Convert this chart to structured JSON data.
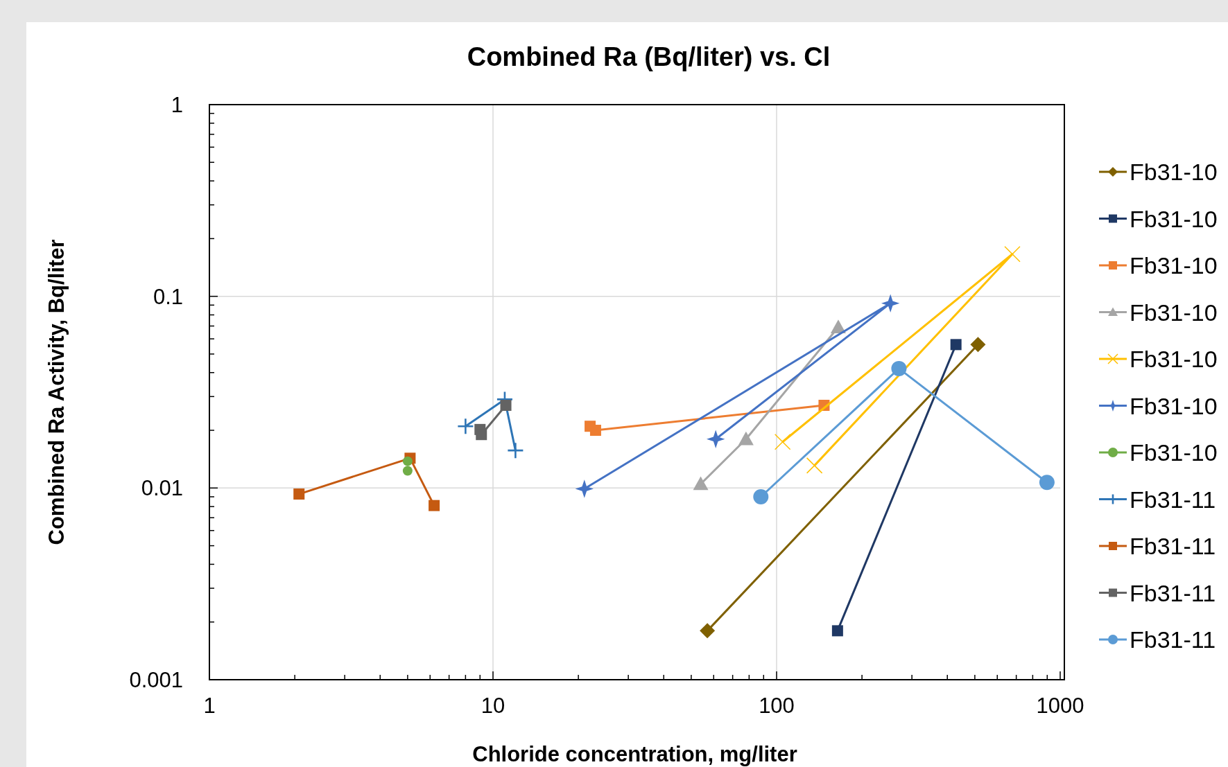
{
  "chart_data": {
    "type": "line",
    "title": "Combined Ra (Bq/liter) vs. Cl",
    "xlabel": "Chloride concentration, mg/liter",
    "ylabel": "Combined Ra Activity, Bq/liter",
    "log": "xy",
    "grid": true,
    "legend": "right",
    "xlim": [
      1,
      1000
    ],
    "ylim": [
      0.001,
      1
    ],
    "xticks": [
      1,
      {
        "value": 2,
        "label": null
      },
      {
        "value": 3,
        "label": null
      },
      {
        "value": 4,
        "label": null
      },
      {
        "value": 5,
        "label": null
      },
      {
        "value": 6,
        "label": null
      },
      {
        "value": 7,
        "label": null
      },
      {
        "value": 8,
        "label": null
      },
      {
        "value": 9,
        "label": null
      },
      10,
      {
        "value": 20,
        "label": null
      },
      {
        "value": 30,
        "label": null
      },
      {
        "value": 40,
        "label": null
      },
      {
        "value": 50,
        "label": null
      },
      {
        "value": 60,
        "label": null
      },
      {
        "value": 70,
        "label": null
      },
      {
        "value": 80,
        "label": null
      },
      {
        "value": 90,
        "label": null
      },
      100,
      {
        "value": 200,
        "label": null
      },
      {
        "value": 300,
        "label": null
      },
      {
        "value": 400,
        "label": null
      },
      {
        "value": 500,
        "label": null
      },
      {
        "value": 600,
        "label": null
      },
      {
        "value": 700,
        "label": null
      },
      {
        "value": 800,
        "label": null
      },
      {
        "value": 900,
        "label": null
      },
      1000
    ],
    "yticks": [
      0.001,
      {
        "value": 0.002,
        "label": null
      },
      {
        "value": 0.003,
        "label": null
      },
      {
        "value": 0.004,
        "label": null
      },
      {
        "value": 0.005,
        "label": null
      },
      {
        "value": 0.006,
        "label": null
      },
      {
        "value": 0.007,
        "label": null
      },
      {
        "value": 0.008,
        "label": null
      },
      {
        "value": 0.009,
        "label": null
      },
      0.01,
      {
        "value": 0.02,
        "label": null
      },
      {
        "value": 0.03,
        "label": null
      },
      {
        "value": 0.04,
        "label": null
      },
      {
        "value": 0.05,
        "label": null
      },
      {
        "value": 0.06,
        "label": null
      },
      {
        "value": 0.07,
        "label": null
      },
      {
        "value": 0.08,
        "label": null
      },
      {
        "value": 0.09,
        "label": null
      },
      0.1,
      {
        "value": 0.2,
        "label": null
      },
      {
        "value": 0.3,
        "label": null
      },
      {
        "value": 0.4,
        "label": null
      },
      {
        "value": 0.5,
        "label": null
      },
      {
        "value": 0.6,
        "label": null
      },
      {
        "value": 0.7,
        "label": null
      },
      {
        "value": 0.8,
        "label": null
      },
      {
        "value": 0.9,
        "label": null
      },
      1
    ],
    "series": [
      {
        "name": "Fb31-10",
        "color": "#7f6000",
        "marker": "diamond",
        "x": [
          57,
          513
        ],
        "values": [
          0.0018,
          0.056
        ]
      },
      {
        "name": "Fb31-10",
        "color": "#1f3864",
        "marker": "square",
        "x": [
          164,
          429
        ],
        "values": [
          0.0018,
          0.056
        ]
      },
      {
        "name": "Fb31-10",
        "color": "#ed7d31",
        "marker": "square",
        "x": [
          22,
          23,
          147
        ],
        "values": [
          0.021,
          0.02,
          0.027
        ]
      },
      {
        "name": "Fb31-10",
        "color": "#a5a5a5",
        "marker": "triangle",
        "x": [
          54,
          78,
          165
        ],
        "values": [
          0.0105,
          0.018,
          0.069
        ]
      },
      {
        "name": "Fb31-10",
        "color": "#ffc000",
        "marker": "x",
        "x": [
          105,
          678,
          136
        ],
        "values": [
          0.0174,
          0.166,
          0.0131
        ]
      },
      {
        "name": "Fb31-10",
        "color": "#4472c4",
        "marker": "star",
        "x": [
          21,
          252,
          61
        ],
        "values": [
          0.0099,
          0.092,
          0.018
        ]
      },
      {
        "name": "Fb31-10",
        "type": "scatter",
        "color": "#70ad47",
        "marker": "circle",
        "x": [
          5,
          5
        ],
        "values": [
          0.0138,
          0.0123
        ]
      },
      {
        "name": "Fb31-11",
        "color": "#2e75b6",
        "marker": "cross",
        "x": [
          8,
          11,
          12
        ],
        "values": [
          0.021,
          0.029,
          0.0157
        ]
      },
      {
        "name": "Fb31-11",
        "color": "#c55a11",
        "marker": "square",
        "x": [
          2.07,
          5.1,
          6.2
        ],
        "values": [
          0.0093,
          0.0143,
          0.0081
        ]
      },
      {
        "name": "Fb31-11",
        "color": "#636363",
        "marker": "square",
        "x": [
          9,
          9.1,
          11.1
        ],
        "values": [
          0.0202,
          0.019,
          0.027
        ]
      },
      {
        "name": "Fb31-11",
        "color": "#5b9bd5",
        "marker": "circle",
        "x": [
          88,
          270,
          898
        ],
        "values": [
          0.009,
          0.042,
          0.0107
        ]
      }
    ]
  }
}
